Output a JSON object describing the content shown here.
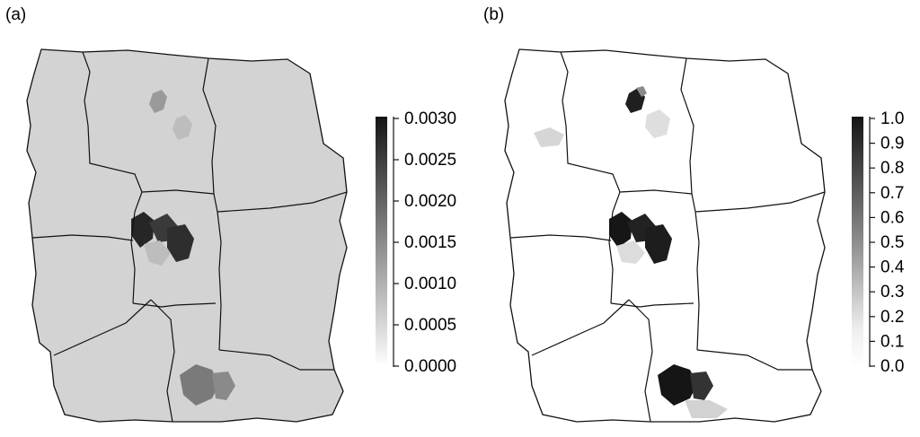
{
  "panels": [
    {
      "label": "(a)",
      "legend": {
        "ticks": [
          "0.0030",
          "0.0025",
          "0.0020",
          "0.0015",
          "0.0010",
          "0.0005",
          "0.0000"
        ],
        "range": [
          0,
          0.003
        ]
      }
    },
    {
      "label": "(b)",
      "legend": {
        "ticks": [
          "1.0",
          "0.9",
          "0.8",
          "0.7",
          "0.6",
          "0.5",
          "0.4",
          "0.3",
          "0.2",
          "0.1",
          "0.0"
        ],
        "range": [
          0,
          1
        ]
      }
    }
  ],
  "colors": {
    "panel_a_fill": "#d3d3d3",
    "panel_b_fill": "#ffffff",
    "outline": "#111111",
    "hotspot_dark": "#1c1c1c",
    "hotspot_mid": "#555555",
    "hotspot_light": "#c8c8c8"
  }
}
